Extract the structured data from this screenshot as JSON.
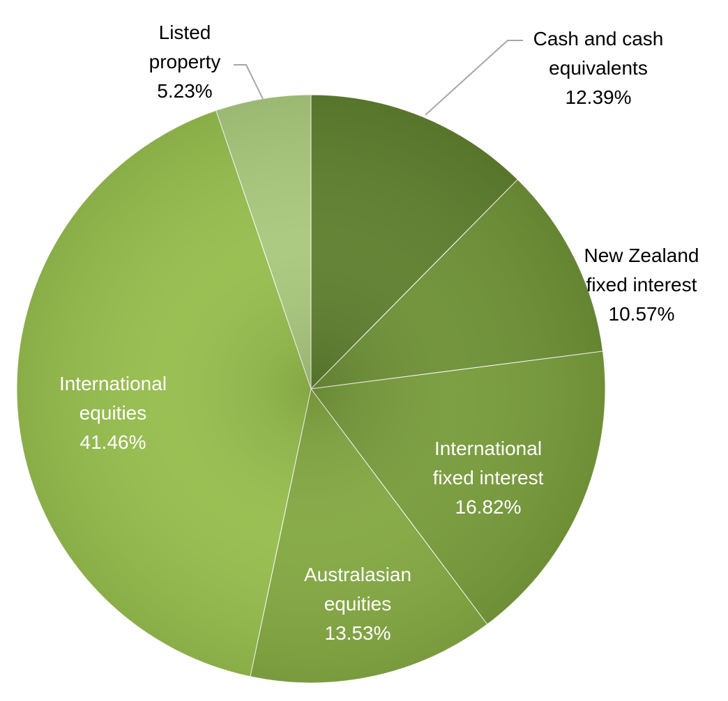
{
  "chart_data": {
    "type": "pie",
    "start_angle": "top",
    "direction": "clockwise",
    "slices": [
      {
        "label": [
          "Cash and cash",
          "equivalents"
        ],
        "value": 12.39,
        "value_label": "12.39%",
        "color": "#5f7f2e",
        "label_position": "outside",
        "label_color": "#000000"
      },
      {
        "label": [
          "New Zealand",
          "fixed interest"
        ],
        "value": 10.57,
        "value_label": "10.57%",
        "color": "#6e9036",
        "label_position": "inside",
        "label_color": "#000000"
      },
      {
        "label": [
          "International",
          "fixed interest"
        ],
        "value": 16.82,
        "value_label": "16.82%",
        "color": "#789b3b",
        "label_position": "inside",
        "label_color": "#ffffff"
      },
      {
        "label": [
          "Australasian",
          "equities"
        ],
        "value": 13.53,
        "value_label": "13.53%",
        "color": "#84a842",
        "label_position": "inside",
        "label_color": "#ffffff"
      },
      {
        "label": [
          "International",
          "equities"
        ],
        "value": 41.46,
        "value_label": "41.46%",
        "color": "#96bd4d",
        "label_position": "inside",
        "label_color": "#ffffff"
      },
      {
        "label": [
          "Listed",
          "property"
        ],
        "value": 5.23,
        "value_label": "5.23%",
        "color": "#a9c87c",
        "label_position": "outside",
        "label_color": "#000000"
      }
    ]
  }
}
